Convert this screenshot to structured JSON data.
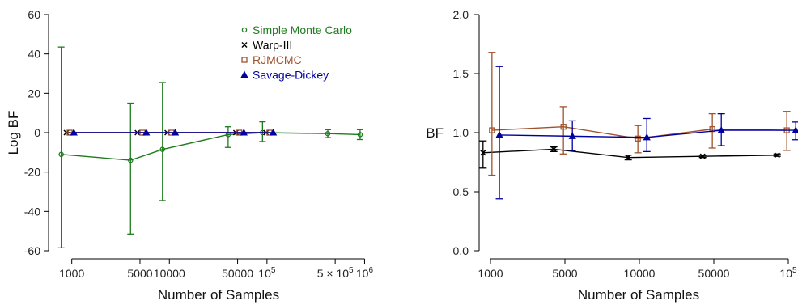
{
  "chart_data": [
    {
      "type": "line",
      "ylabel": "Log BF",
      "xlabel": "Number of Samples",
      "x_scale": "log",
      "xlim": [
        700,
        1200000
      ],
      "ylim": [
        -60,
        60
      ],
      "yticks": [
        -60,
        -40,
        -20,
        0,
        20,
        40,
        60
      ],
      "xticks": [
        {
          "value": 1000,
          "label": "1000"
        },
        {
          "value": 5000,
          "label": "5000"
        },
        {
          "value": 10000,
          "label": "10000"
        },
        {
          "value": 50000,
          "label": "50000"
        },
        {
          "value": 100000,
          "label": "10",
          "sup": "5"
        },
        {
          "value": 500000,
          "label": "5 × 10",
          "sup": "5"
        },
        {
          "value": 1000000,
          "label": "10",
          "sup": "6"
        }
      ],
      "legend": {
        "position": "top-center"
      },
      "series": [
        {
          "name": "Simple Monte Carlo",
          "color": "#1e7b1e",
          "marker": "circle",
          "points": [
            {
              "x": 780,
              "y": -11,
              "lo": -58.5,
              "hi": 43.5
            },
            {
              "x": 4000,
              "y": -14,
              "lo": -51.5,
              "hi": 15
            },
            {
              "x": 8500,
              "y": -8.5,
              "lo": -34.5,
              "hi": 25.5
            },
            {
              "x": 40000,
              "y": -1,
              "lo": -7.5,
              "hi": 3
            },
            {
              "x": 90000,
              "y": 0,
              "lo": -4.5,
              "hi": 5.5
            },
            {
              "x": 420000,
              "y": -0.5,
              "lo": -2.5,
              "hi": 1.5
            },
            {
              "x": 900000,
              "y": -1,
              "lo": -3.5,
              "hi": 1.5
            }
          ]
        },
        {
          "name": "Warp-III",
          "color": "#000000",
          "marker": "x",
          "points": [
            {
              "x": 880,
              "y": 0
            },
            {
              "x": 4700,
              "y": 0
            },
            {
              "x": 9500,
              "y": 0
            },
            {
              "x": 48000,
              "y": 0
            },
            {
              "x": 98000,
              "y": 0
            }
          ]
        },
        {
          "name": "RJMCMC",
          "color": "#a0522d",
          "marker": "square",
          "points": [
            {
              "x": 950,
              "y": 0
            },
            {
              "x": 5300,
              "y": 0
            },
            {
              "x": 10500,
              "y": 0
            },
            {
              "x": 52000,
              "y": 0
            },
            {
              "x": 106000,
              "y": 0
            }
          ]
        },
        {
          "name": "Savage-Dickey",
          "color": "#0000a0",
          "marker": "triangle",
          "points": [
            {
              "x": 1050,
              "y": 0
            },
            {
              "x": 5800,
              "y": 0
            },
            {
              "x": 11500,
              "y": 0
            },
            {
              "x": 58000,
              "y": 0
            },
            {
              "x": 116000,
              "y": 0
            }
          ]
        }
      ]
    },
    {
      "type": "line",
      "ylabel": "BF",
      "xlabel": "Number of Samples",
      "x_scale": "categorical",
      "categories": [
        "1000",
        "5000",
        "10000",
        "50000",
        "10"
      ],
      "category_sup": [
        "",
        "",
        "",
        "",
        "5"
      ],
      "ylim": [
        0,
        2
      ],
      "yticks": [
        0.0,
        0.5,
        1.0,
        1.5,
        2.0
      ],
      "ytick_labels": [
        "0.0",
        "0.5",
        "1.0",
        "1.5",
        "2.0"
      ],
      "series": [
        {
          "name": "Warp-III",
          "color": "#000000",
          "marker": "x",
          "points": [
            {
              "x": -0.1,
              "y": 0.83,
              "lo": 0.7,
              "hi": 0.93
            },
            {
              "x": 0.85,
              "y": 0.86,
              "lo": 0.84,
              "hi": 0.88
            },
            {
              "x": 1.85,
              "y": 0.79,
              "lo": 0.77,
              "hi": 0.81
            },
            {
              "x": 2.85,
              "y": 0.8,
              "lo": 0.79,
              "hi": 0.81
            },
            {
              "x": 3.85,
              "y": 0.81,
              "lo": 0.8,
              "hi": 0.82
            }
          ]
        },
        {
          "name": "RJMCMC",
          "color": "#a0522d",
          "marker": "square",
          "points": [
            {
              "x": 0.02,
              "y": 1.02,
              "lo": 0.64,
              "hi": 1.68
            },
            {
              "x": 0.98,
              "y": 1.05,
              "lo": 0.82,
              "hi": 1.22
            },
            {
              "x": 1.98,
              "y": 0.95,
              "lo": 0.83,
              "hi": 1.06
            },
            {
              "x": 2.98,
              "y": 1.03,
              "lo": 0.87,
              "hi": 1.16
            },
            {
              "x": 3.98,
              "y": 1.02,
              "lo": 0.85,
              "hi": 1.18
            }
          ]
        },
        {
          "name": "Savage-Dickey",
          "color": "#0000a0",
          "marker": "triangle",
          "points": [
            {
              "x": 0.12,
              "y": 0.98,
              "lo": 0.44,
              "hi": 1.56
            },
            {
              "x": 1.1,
              "y": 0.97,
              "lo": 0.85,
              "hi": 1.1
            },
            {
              "x": 2.1,
              "y": 0.96,
              "lo": 0.84,
              "hi": 1.12
            },
            {
              "x": 3.1,
              "y": 1.02,
              "lo": 0.89,
              "hi": 1.16
            },
            {
              "x": 4.1,
              "y": 1.02,
              "lo": 0.94,
              "hi": 1.09
            }
          ]
        }
      ]
    }
  ]
}
